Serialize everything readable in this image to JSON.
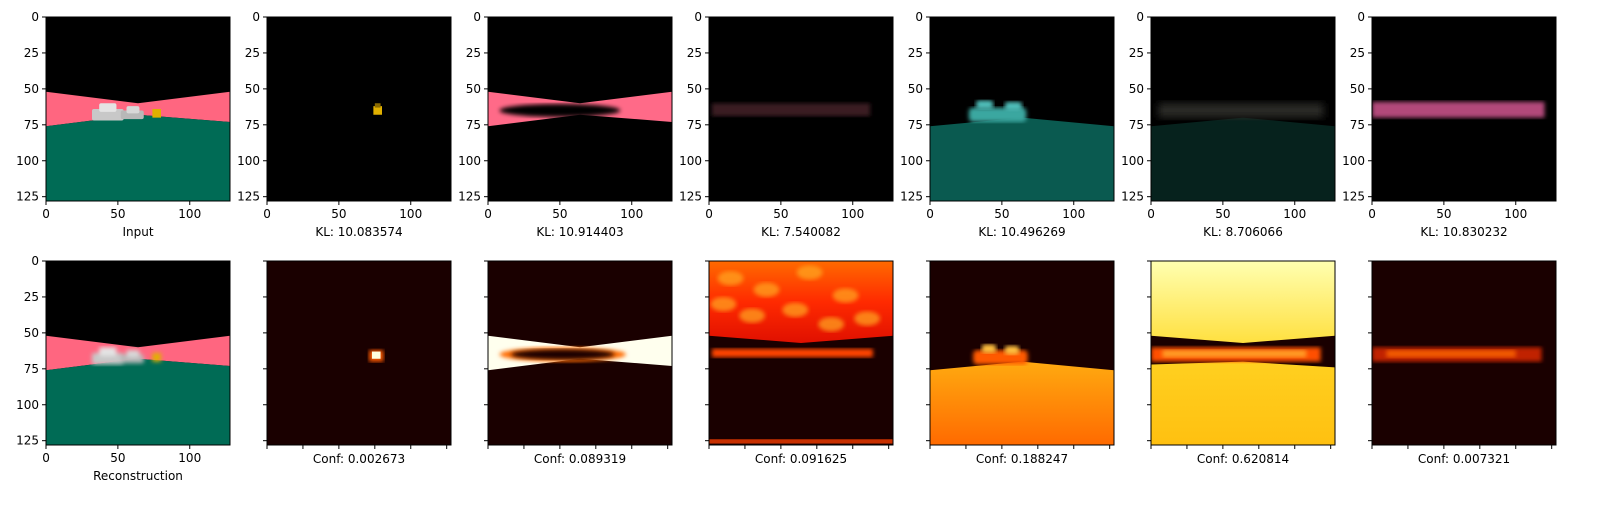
{
  "chart_data": {
    "type": "image-grid",
    "rows": 2,
    "cols": 7,
    "axis_ticks": [
      0,
      25,
      50,
      75,
      100,
      125
    ],
    "x_ticks": [
      0,
      50,
      100
    ],
    "image_range": [
      0,
      128
    ],
    "panels": [
      {
        "row": 0,
        "col": 0,
        "kind": "scene",
        "caption": "Input",
        "show_yticks": true,
        "show_tick_labels": true
      },
      {
        "row": 0,
        "col": 1,
        "kind": "mask-car",
        "caption": "KL: 10.083574",
        "show_yticks": true,
        "show_tick_labels": true
      },
      {
        "row": 0,
        "col": 2,
        "kind": "mask-road",
        "caption": "KL: 10.914403",
        "show_yticks": true,
        "show_tick_labels": true
      },
      {
        "row": 0,
        "col": 3,
        "kind": "mask-faint",
        "caption": "KL: 7.540082",
        "show_yticks": true,
        "show_tick_labels": true
      },
      {
        "row": 0,
        "col": 4,
        "kind": "mask-ground",
        "caption": "KL: 10.496269",
        "show_yticks": true,
        "show_tick_labels": true
      },
      {
        "row": 0,
        "col": 5,
        "kind": "mask-dark-ground",
        "caption": "KL: 8.706066",
        "show_yticks": true,
        "show_tick_labels": true
      },
      {
        "row": 0,
        "col": 6,
        "kind": "mask-strip",
        "caption": "KL: 10.830232",
        "show_yticks": true,
        "show_tick_labels": true
      },
      {
        "row": 1,
        "col": 0,
        "kind": "scene-blur",
        "caption": "Reconstruction",
        "show_yticks": true,
        "show_tick_labels": true
      },
      {
        "row": 1,
        "col": 1,
        "kind": "conf-car",
        "caption": "Conf: 0.002673",
        "show_yticks": true,
        "show_tick_labels": false
      },
      {
        "row": 1,
        "col": 2,
        "kind": "conf-road",
        "caption": "Conf: 0.089319",
        "show_yticks": true,
        "show_tick_labels": false
      },
      {
        "row": 1,
        "col": 3,
        "kind": "conf-sky",
        "caption": "Conf: 0.091625",
        "show_yticks": true,
        "show_tick_labels": false
      },
      {
        "row": 1,
        "col": 4,
        "kind": "conf-ground",
        "caption": "Conf: 0.188247",
        "show_yticks": true,
        "show_tick_labels": false
      },
      {
        "row": 1,
        "col": 5,
        "kind": "conf-bright",
        "caption": "Conf: 0.620814",
        "show_yticks": true,
        "show_tick_labels": false
      },
      {
        "row": 1,
        "col": 6,
        "kind": "conf-strip",
        "caption": "Conf: 0.007321",
        "show_yticks": true,
        "show_tick_labels": false
      }
    ]
  },
  "colors": {
    "sky": "#000000",
    "road": "#ff6680",
    "ground": "#006b55",
    "car": "#c8c8c8",
    "cone": "#e0b000",
    "heat_low": "#1a0000",
    "heat_mid": "#ff3300",
    "heat_high": "#ffff80",
    "heat_max": "#ffffee"
  }
}
